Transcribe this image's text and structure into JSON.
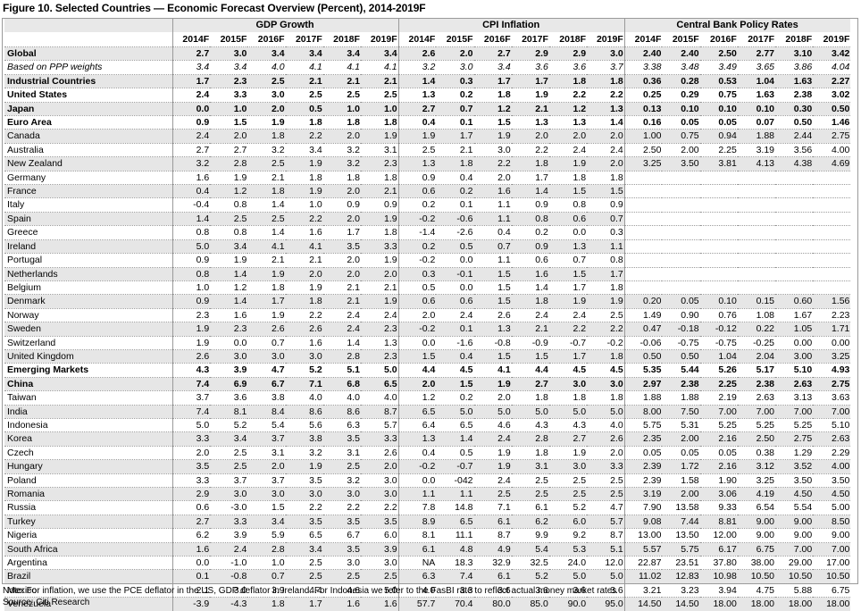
{
  "title": "Figure 10. Selected Countries — Economic Forecast Overview (Percent), 2014-2019F",
  "groups": [
    "GDP Growth",
    "CPI Inflation",
    "Central Bank Policy Rates"
  ],
  "years": [
    "2014F",
    "2015F",
    "2016F",
    "2017F",
    "2018F",
    "2019F"
  ],
  "rows": [
    {
      "name": "Global",
      "style": "bold",
      "gdp": [
        "2.7",
        "3.0",
        "3.4",
        "3.4",
        "3.4",
        "3.4"
      ],
      "cpi": [
        "2.6",
        "2.0",
        "2.7",
        "2.9",
        "2.9",
        "3.0"
      ],
      "cb": [
        "2.40",
        "2.40",
        "2.50",
        "2.77",
        "3.10",
        "3.42"
      ]
    },
    {
      "name": "Based on PPP weights",
      "style": "italic",
      "gdp": [
        "3.4",
        "3.4",
        "4.0",
        "4.1",
        "4.1",
        "4.1"
      ],
      "cpi": [
        "3.2",
        "3.0",
        "3.4",
        "3.6",
        "3.6",
        "3.7"
      ],
      "cb": [
        "3.38",
        "3.48",
        "3.49",
        "3.65",
        "3.86",
        "4.04"
      ]
    },
    {
      "name": "Industrial Countries",
      "style": "bold",
      "gdp": [
        "1.7",
        "2.3",
        "2.5",
        "2.1",
        "2.1",
        "2.1"
      ],
      "cpi": [
        "1.4",
        "0.3",
        "1.7",
        "1.7",
        "1.8",
        "1.8"
      ],
      "cb": [
        "0.36",
        "0.28",
        "0.53",
        "1.04",
        "1.63",
        "2.27"
      ]
    },
    {
      "name": "United States",
      "style": "bold",
      "gdp": [
        "2.4",
        "3.3",
        "3.0",
        "2.5",
        "2.5",
        "2.5"
      ],
      "cpi": [
        "1.3",
        "0.2",
        "1.8",
        "1.9",
        "2.2",
        "2.2"
      ],
      "cb": [
        "0.25",
        "0.29",
        "0.75",
        "1.63",
        "2.38",
        "3.02"
      ]
    },
    {
      "name": "Japan",
      "style": "bold",
      "gdp": [
        "0.0",
        "1.0",
        "2.0",
        "0.5",
        "1.0",
        "1.0"
      ],
      "cpi": [
        "2.7",
        "0.7",
        "1.2",
        "2.1",
        "1.2",
        "1.3"
      ],
      "cb": [
        "0.13",
        "0.10",
        "0.10",
        "0.10",
        "0.30",
        "0.50"
      ]
    },
    {
      "name": "Euro Area",
      "style": "bold",
      "gdp": [
        "0.9",
        "1.5",
        "1.9",
        "1.8",
        "1.8",
        "1.8"
      ],
      "cpi": [
        "0.4",
        "0.1",
        "1.5",
        "1.3",
        "1.3",
        "1.4"
      ],
      "cb": [
        "0.16",
        "0.05",
        "0.05",
        "0.07",
        "0.50",
        "1.46"
      ]
    },
    {
      "name": "Canada",
      "style": "",
      "gdp": [
        "2.4",
        "2.0",
        "1.8",
        "2.2",
        "2.0",
        "1.9"
      ],
      "cpi": [
        "1.9",
        "1.7",
        "1.9",
        "2.0",
        "2.0",
        "2.0"
      ],
      "cb": [
        "1.00",
        "0.75",
        "0.94",
        "1.88",
        "2.44",
        "2.75"
      ]
    },
    {
      "name": "Australia",
      "style": "",
      "gdp": [
        "2.7",
        "2.7",
        "3.2",
        "3.4",
        "3.2",
        "3.1"
      ],
      "cpi": [
        "2.5",
        "2.1",
        "3.0",
        "2.2",
        "2.4",
        "2.4"
      ],
      "cb": [
        "2.50",
        "2.00",
        "2.25",
        "3.19",
        "3.56",
        "4.00"
      ]
    },
    {
      "name": "New Zealand",
      "style": "",
      "gdp": [
        "3.2",
        "2.8",
        "2.5",
        "1.9",
        "3.2",
        "2.3"
      ],
      "cpi": [
        "1.3",
        "1.8",
        "2.2",
        "1.8",
        "1.9",
        "2.0"
      ],
      "cb": [
        "3.25",
        "3.50",
        "3.81",
        "4.13",
        "4.38",
        "4.69"
      ]
    },
    {
      "name": "Germany",
      "style": "",
      "gdp": [
        "1.6",
        "1.9",
        "2.1",
        "1.8",
        "1.8",
        "1.8"
      ],
      "cpi": [
        "0.9",
        "0.4",
        "2.0",
        "1.7",
        "1.8",
        "1.8"
      ],
      "cb": []
    },
    {
      "name": "France",
      "style": "",
      "gdp": [
        "0.4",
        "1.2",
        "1.8",
        "1.9",
        "2.0",
        "2.1"
      ],
      "cpi": [
        "0.6",
        "0.2",
        "1.6",
        "1.4",
        "1.5",
        "1.5"
      ],
      "cb": []
    },
    {
      "name": "Italy",
      "style": "",
      "gdp": [
        "-0.4",
        "0.8",
        "1.4",
        "1.0",
        "0.9",
        "0.9"
      ],
      "cpi": [
        "0.2",
        "0.1",
        "1.1",
        "0.9",
        "0.8",
        "0.9"
      ],
      "cb": []
    },
    {
      "name": "Spain",
      "style": "",
      "gdp": [
        "1.4",
        "2.5",
        "2.5",
        "2.2",
        "2.0",
        "1.9"
      ],
      "cpi": [
        "-0.2",
        "-0.6",
        "1.1",
        "0.8",
        "0.6",
        "0.7"
      ],
      "cb": []
    },
    {
      "name": "Greece",
      "style": "",
      "gdp": [
        "0.8",
        "0.8",
        "1.4",
        "1.6",
        "1.7",
        "1.8"
      ],
      "cpi": [
        "-1.4",
        "-2.6",
        "0.4",
        "0.2",
        "0.0",
        "0.3"
      ],
      "cb": []
    },
    {
      "name": "Ireland",
      "style": "",
      "gdp": [
        "5.0",
        "3.4",
        "4.1",
        "4.1",
        "3.5",
        "3.3"
      ],
      "cpi": [
        "0.2",
        "0.5",
        "0.7",
        "0.9",
        "1.3",
        "1.1"
      ],
      "cb": []
    },
    {
      "name": "Portugal",
      "style": "",
      "gdp": [
        "0.9",
        "1.9",
        "2.1",
        "2.1",
        "2.0",
        "1.9"
      ],
      "cpi": [
        "-0.2",
        "0.0",
        "1.1",
        "0.6",
        "0.7",
        "0.8"
      ],
      "cb": []
    },
    {
      "name": "Netherlands",
      "style": "",
      "gdp": [
        "0.8",
        "1.4",
        "1.9",
        "2.0",
        "2.0",
        "2.0"
      ],
      "cpi": [
        "0.3",
        "-0.1",
        "1.5",
        "1.6",
        "1.5",
        "1.7"
      ],
      "cb": []
    },
    {
      "name": "Belgium",
      "style": "",
      "gdp": [
        "1.0",
        "1.2",
        "1.8",
        "1.9",
        "2.1",
        "2.1"
      ],
      "cpi": [
        "0.5",
        "0.0",
        "1.5",
        "1.4",
        "1.7",
        "1.8"
      ],
      "cb": []
    },
    {
      "name": "Denmark",
      "style": "",
      "gdp": [
        "0.9",
        "1.4",
        "1.7",
        "1.8",
        "2.1",
        "1.9"
      ],
      "cpi": [
        "0.6",
        "0.6",
        "1.5",
        "1.8",
        "1.9",
        "1.9"
      ],
      "cb": [
        "0.20",
        "0.05",
        "0.10",
        "0.15",
        "0.60",
        "1.56"
      ]
    },
    {
      "name": "Norway",
      "style": "",
      "gdp": [
        "2.3",
        "1.6",
        "1.9",
        "2.2",
        "2.4",
        "2.4"
      ],
      "cpi": [
        "2.0",
        "2.4",
        "2.6",
        "2.4",
        "2.4",
        "2.5"
      ],
      "cb": [
        "1.49",
        "0.90",
        "0.76",
        "1.08",
        "1.67",
        "2.23"
      ]
    },
    {
      "name": "Sweden",
      "style": "",
      "gdp": [
        "1.9",
        "2.3",
        "2.6",
        "2.6",
        "2.4",
        "2.3"
      ],
      "cpi": [
        "-0.2",
        "0.1",
        "1.3",
        "2.1",
        "2.2",
        "2.2"
      ],
      "cb": [
        "0.47",
        "-0.18",
        "-0.12",
        "0.22",
        "1.05",
        "1.71"
      ]
    },
    {
      "name": "Switzerland",
      "style": "",
      "gdp": [
        "1.9",
        "0.0",
        "0.7",
        "1.6",
        "1.4",
        "1.3"
      ],
      "cpi": [
        "0.0",
        "-1.6",
        "-0.8",
        "-0.9",
        "-0.7",
        "-0.2"
      ],
      "cb": [
        "-0.06",
        "-0.75",
        "-0.75",
        "-0.25",
        "0.00",
        "0.00"
      ]
    },
    {
      "name": "United Kingdom",
      "style": "",
      "gdp": [
        "2.6",
        "3.0",
        "3.0",
        "3.0",
        "2.8",
        "2.3"
      ],
      "cpi": [
        "1.5",
        "0.4",
        "1.5",
        "1.5",
        "1.7",
        "1.8"
      ],
      "cb": [
        "0.50",
        "0.50",
        "1.04",
        "2.04",
        "3.00",
        "3.25"
      ]
    },
    {
      "name": "Emerging Markets",
      "style": "bold",
      "gdp": [
        "4.3",
        "3.9",
        "4.7",
        "5.2",
        "5.1",
        "5.0"
      ],
      "cpi": [
        "4.4",
        "4.5",
        "4.1",
        "4.4",
        "4.5",
        "4.5"
      ],
      "cb": [
        "5.35",
        "5.44",
        "5.26",
        "5.17",
        "5.10",
        "4.93"
      ]
    },
    {
      "name": "China",
      "style": "bold",
      "gdp": [
        "7.4",
        "6.9",
        "6.7",
        "7.1",
        "6.8",
        "6.5"
      ],
      "cpi": [
        "2.0",
        "1.5",
        "1.9",
        "2.7",
        "3.0",
        "3.0"
      ],
      "cb": [
        "2.97",
        "2.38",
        "2.25",
        "2.38",
        "2.63",
        "2.75"
      ]
    },
    {
      "name": "Taiwan",
      "style": "",
      "gdp": [
        "3.7",
        "3.6",
        "3.8",
        "4.0",
        "4.0",
        "4.0"
      ],
      "cpi": [
        "1.2",
        "0.2",
        "2.0",
        "1.8",
        "1.8",
        "1.8"
      ],
      "cb": [
        "1.88",
        "1.88",
        "2.19",
        "2.63",
        "3.13",
        "3.63"
      ]
    },
    {
      "name": "India",
      "style": "",
      "gdp": [
        "7.4",
        "8.1",
        "8.4",
        "8.6",
        "8.6",
        "8.7"
      ],
      "cpi": [
        "6.5",
        "5.0",
        "5.0",
        "5.0",
        "5.0",
        "5.0"
      ],
      "cb": [
        "8.00",
        "7.50",
        "7.00",
        "7.00",
        "7.00",
        "7.00"
      ]
    },
    {
      "name": "Indonesia",
      "style": "",
      "gdp": [
        "5.0",
        "5.2",
        "5.4",
        "5.6",
        "6.3",
        "5.7"
      ],
      "cpi": [
        "6.4",
        "6.5",
        "4.6",
        "4.3",
        "4.3",
        "4.0"
      ],
      "cb": [
        "5.75",
        "5.31",
        "5.25",
        "5.25",
        "5.25",
        "5.10"
      ]
    },
    {
      "name": "Korea",
      "style": "",
      "gdp": [
        "3.3",
        "3.4",
        "3.7",
        "3.8",
        "3.5",
        "3.3"
      ],
      "cpi": [
        "1.3",
        "1.4",
        "2.4",
        "2.8",
        "2.7",
        "2.6"
      ],
      "cb": [
        "2.35",
        "2.00",
        "2.16",
        "2.50",
        "2.75",
        "2.63"
      ]
    },
    {
      "name": "Czech",
      "style": "",
      "gdp": [
        "2.0",
        "2.5",
        "3.1",
        "3.2",
        "3.1",
        "2.6"
      ],
      "cpi": [
        "0.4",
        "0.5",
        "1.9",
        "1.8",
        "1.9",
        "2.0"
      ],
      "cb": [
        "0.05",
        "0.05",
        "0.05",
        "0.38",
        "1.29",
        "2.29"
      ]
    },
    {
      "name": "Hungary",
      "style": "",
      "gdp": [
        "3.5",
        "2.5",
        "2.0",
        "1.9",
        "2.5",
        "2.0"
      ],
      "cpi": [
        "-0.2",
        "-0.7",
        "1.9",
        "3.1",
        "3.0",
        "3.3"
      ],
      "cb": [
        "2.39",
        "1.72",
        "2.16",
        "3.12",
        "3.52",
        "4.00"
      ]
    },
    {
      "name": "Poland",
      "style": "",
      "gdp": [
        "3.3",
        "3.7",
        "3.7",
        "3.5",
        "3.2",
        "3.0"
      ],
      "cpi": [
        "0.0",
        "-042",
        "2.4",
        "2.5",
        "2.5",
        "2.5"
      ],
      "cb": [
        "2.39",
        "1.58",
        "1.90",
        "3.25",
        "3.50",
        "3.50"
      ]
    },
    {
      "name": "Romania",
      "style": "",
      "gdp": [
        "2.9",
        "3.0",
        "3.0",
        "3.0",
        "3.0",
        "3.0"
      ],
      "cpi": [
        "1.1",
        "1.1",
        "2.5",
        "2.5",
        "2.5",
        "2.5"
      ],
      "cb": [
        "3.19",
        "2.00",
        "3.06",
        "4.19",
        "4.50",
        "4.50"
      ]
    },
    {
      "name": "Russia",
      "style": "",
      "gdp": [
        "0.6",
        "-3.0",
        "1.5",
        "2.2",
        "2.2",
        "2.2"
      ],
      "cpi": [
        "7.8",
        "14.8",
        "7.1",
        "6.1",
        "5.2",
        "4.7"
      ],
      "cb": [
        "7.90",
        "13.58",
        "9.33",
        "6.54",
        "5.54",
        "5.00"
      ]
    },
    {
      "name": "Turkey",
      "style": "",
      "gdp": [
        "2.7",
        "3.3",
        "3.4",
        "3.5",
        "3.5",
        "3.5"
      ],
      "cpi": [
        "8.9",
        "6.5",
        "6.1",
        "6.2",
        "6.0",
        "5.7"
      ],
      "cb": [
        "9.08",
        "7.44",
        "8.81",
        "9.00",
        "9.00",
        "8.50"
      ]
    },
    {
      "name": "Nigeria",
      "style": "",
      "gdp": [
        "6.2",
        "3.9",
        "5.9",
        "6.5",
        "6.7",
        "6.0"
      ],
      "cpi": [
        "8.1",
        "11.1",
        "8.7",
        "9.9",
        "9.2",
        "8.7"
      ],
      "cb": [
        "13.00",
        "13.50",
        "12.00",
        "9.00",
        "9.00",
        "9.00"
      ]
    },
    {
      "name": "South Africa",
      "style": "",
      "gdp": [
        "1.6",
        "2.4",
        "2.8",
        "3.4",
        "3.5",
        "3.9"
      ],
      "cpi": [
        "6.1",
        "4.8",
        "4.9",
        "5.4",
        "5.3",
        "5.1"
      ],
      "cb": [
        "5.57",
        "5.75",
        "6.17",
        "6.75",
        "7.00",
        "7.00"
      ]
    },
    {
      "name": "Argentina",
      "style": "",
      "gdp": [
        "0.0",
        "-1.0",
        "1.0",
        "2.5",
        "3.0",
        "3.0"
      ],
      "cpi": [
        "NA",
        "18.3",
        "32.9",
        "32.5",
        "24.0",
        "12.0"
      ],
      "cb": [
        "22.87",
        "23.51",
        "37.80",
        "38.00",
        "29.00",
        "17.00"
      ]
    },
    {
      "name": "Brazil",
      "style": "",
      "gdp": [
        "0.1",
        "-0.8",
        "0.7",
        "2.5",
        "2.5",
        "2.5"
      ],
      "cpi": [
        "6.3",
        "7.4",
        "6.1",
        "5.2",
        "5.0",
        "5.0"
      ],
      "cb": [
        "11.02",
        "12.83",
        "10.98",
        "10.50",
        "10.50",
        "10.50"
      ]
    },
    {
      "name": "Mexico",
      "style": "",
      "gdp": [
        "2.1",
        "3.0",
        "3.9",
        "4.4",
        "4.6",
        "5.0"
      ],
      "cpi": [
        "4.0",
        "3.3",
        "3.6",
        "3.6",
        "3.6",
        "3.6"
      ],
      "cb": [
        "3.21",
        "3.23",
        "3.94",
        "4.75",
        "5.88",
        "6.75"
      ]
    },
    {
      "name": "Venezuela",
      "style": "",
      "gdp": [
        "-3.9",
        "-4.3",
        "1.8",
        "1.7",
        "1.6",
        "1.6"
      ],
      "cpi": [
        "57.7",
        "70.4",
        "80.0",
        "85.0",
        "90.0",
        "95.0"
      ],
      "cb": [
        "14.50",
        "14.50",
        "18.00",
        "18.00",
        "18.00",
        "18.00"
      ]
    }
  ],
  "note": "Note: For inflation, we use the PCE deflator in the US, GDP deflator in Ireland. For Indonesia we refer to the FasBI rate to reflect actual money market rates",
  "source": "Source: Citi Research"
}
